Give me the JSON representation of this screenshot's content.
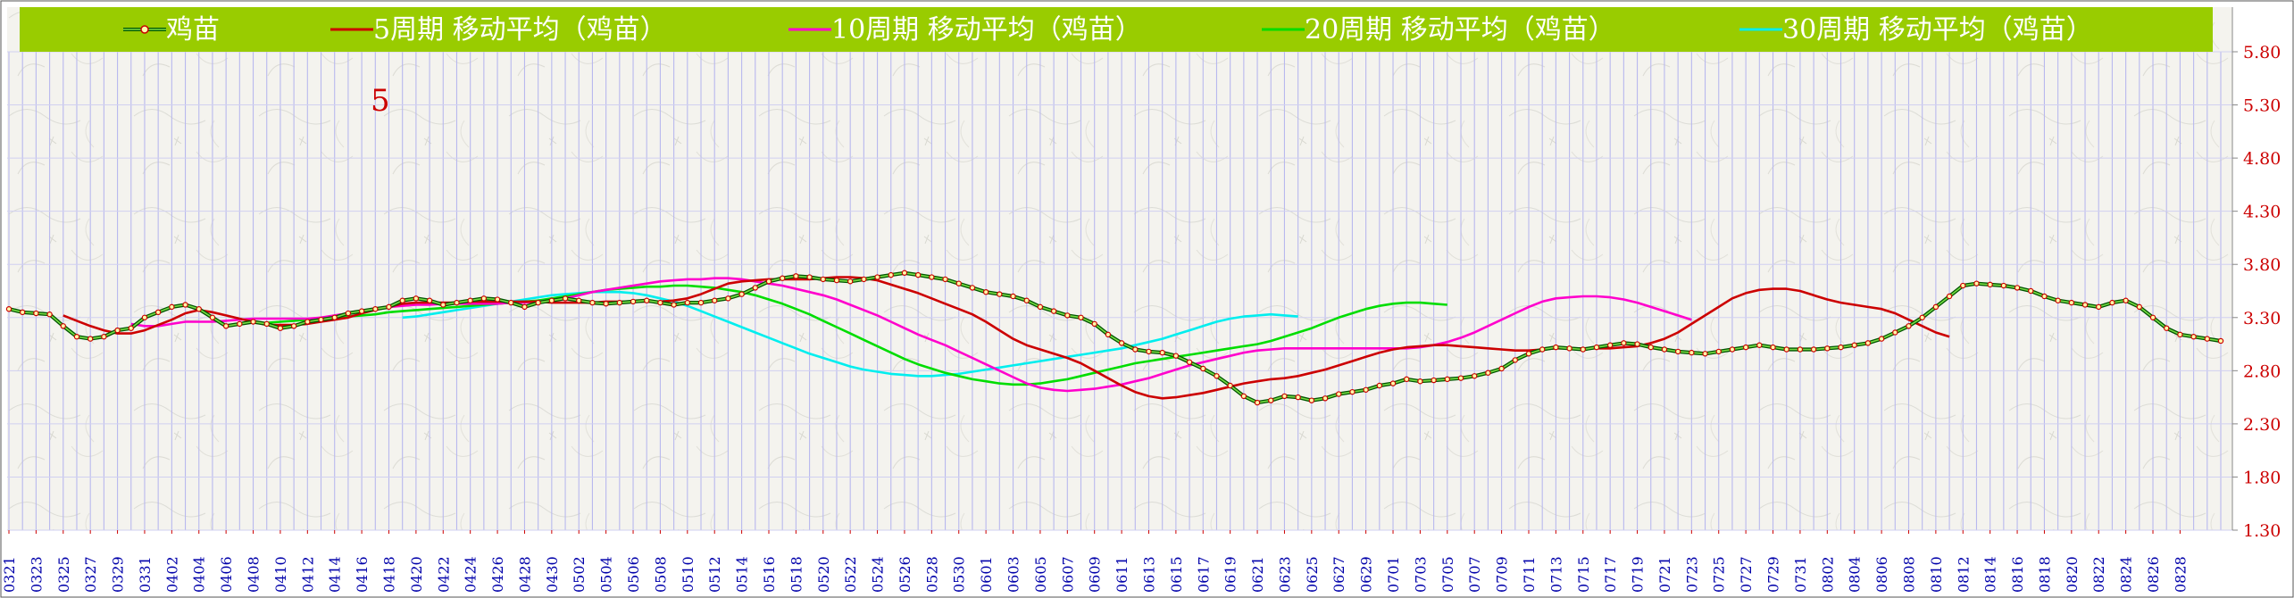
{
  "colors": {
    "background": "#f4f3ee",
    "legend_band": "#99cc00",
    "grid_vertical": "#b8b8ee",
    "grid_horizontal": "#d0d0f0",
    "axis_label_y": "#cc0000",
    "axis_label_x": "#0000aa",
    "annotation": "#cc0000"
  },
  "chart_data": {
    "type": "line",
    "ylim": [
      1.3,
      5.8
    ],
    "y_ticks": [
      "5.80",
      "5.30",
      "4.80",
      "4.30",
      "3.80",
      "3.30",
      "2.80",
      "2.30",
      "1.80",
      "1.30"
    ],
    "annotation": "5",
    "x_ticks": [
      "0321",
      "0323",
      "0325",
      "0327",
      "0329",
      "0331",
      "0402",
      "0404",
      "0406",
      "0408",
      "0410",
      "0412",
      "0414",
      "0416",
      "0418",
      "0420",
      "0422",
      "0424",
      "0426",
      "0428",
      "0430",
      "0502",
      "0504",
      "0506",
      "0508",
      "0510",
      "0512",
      "0514",
      "0516",
      "0518",
      "0520",
      "0522",
      "0524",
      "0526",
      "0528",
      "0530",
      "0601",
      "0603",
      "0605",
      "0607",
      "0609",
      "0611",
      "0613",
      "0615",
      "0617",
      "0619",
      "0621",
      "0623",
      "0625",
      "0627",
      "0629",
      "0701",
      "0703",
      "0705",
      "0707",
      "0709",
      "0711",
      "0713",
      "0715",
      "0717",
      "0719",
      "0721",
      "0723",
      "0725",
      "0727",
      "0729",
      "0731",
      "0802",
      "0804",
      "0806",
      "0808",
      "0810",
      "0812",
      "0814",
      "0816",
      "0818",
      "0820",
      "0822",
      "0824",
      "0826",
      "0828"
    ],
    "series": [
      {
        "name": "鸡苗",
        "color": "#cc0000",
        "marker": true,
        "values": [
          3.38,
          3.35,
          3.34,
          3.33,
          3.22,
          3.12,
          3.1,
          3.12,
          3.18,
          3.2,
          3.3,
          3.35,
          3.4,
          3.42,
          3.38,
          3.3,
          3.22,
          3.24,
          3.26,
          3.24,
          3.2,
          3.22,
          3.26,
          3.28,
          3.3,
          3.34,
          3.36,
          3.38,
          3.4,
          3.46,
          3.48,
          3.46,
          3.42,
          3.44,
          3.46,
          3.48,
          3.47,
          3.44,
          3.4,
          3.44,
          3.46,
          3.48,
          3.46,
          3.44,
          3.43,
          3.44,
          3.45,
          3.46,
          3.44,
          3.42,
          3.44,
          3.44,
          3.46,
          3.48,
          3.52,
          3.58,
          3.64,
          3.67,
          3.69,
          3.68,
          3.66,
          3.65,
          3.64,
          3.66,
          3.68,
          3.7,
          3.72,
          3.7,
          3.68,
          3.66,
          3.62,
          3.58,
          3.54,
          3.52,
          3.5,
          3.46,
          3.4,
          3.36,
          3.32,
          3.3,
          3.24,
          3.14,
          3.06,
          3.0,
          2.98,
          2.97,
          2.94,
          2.88,
          2.82,
          2.75,
          2.66,
          2.56,
          2.5,
          2.52,
          2.56,
          2.55,
          2.52,
          2.54,
          2.58,
          2.6,
          2.62,
          2.66,
          2.68,
          2.72,
          2.7,
          2.71,
          2.72,
          2.73,
          2.75,
          2.78,
          2.82,
          2.9,
          2.96,
          3.0,
          3.02,
          3.01,
          3.0,
          3.02,
          3.04,
          3.06,
          3.05,
          3.02,
          3.0,
          2.98,
          2.97,
          2.96,
          2.98,
          3.0,
          3.02,
          3.04,
          3.02,
          3.0,
          3.0,
          3.0,
          3.01,
          3.02,
          3.04,
          3.06,
          3.1,
          3.16,
          3.22,
          3.3,
          3.4,
          3.5,
          3.6,
          3.62,
          3.61,
          3.6,
          3.58,
          3.55,
          3.5,
          3.46,
          3.44,
          3.42,
          3.4,
          3.44,
          3.46,
          3.4,
          3.3,
          3.2,
          3.14,
          3.12,
          3.1,
          3.08
        ]
      },
      {
        "name": "5周期 移动平均（鸡苗）",
        "color": "#cc0000",
        "marker": false,
        "start": 4,
        "values": [
          3.32,
          3.27,
          3.22,
          3.18,
          3.15,
          3.15,
          3.18,
          3.23,
          3.28,
          3.34,
          3.37,
          3.35,
          3.32,
          3.29,
          3.26,
          3.23,
          3.23,
          3.23,
          3.24,
          3.26,
          3.28,
          3.3,
          3.34,
          3.37,
          3.4,
          3.43,
          3.44,
          3.44,
          3.44,
          3.44,
          3.45,
          3.45,
          3.45,
          3.45,
          3.45,
          3.45,
          3.44,
          3.44,
          3.44,
          3.44,
          3.45,
          3.45,
          3.45,
          3.45,
          3.45,
          3.46,
          3.48,
          3.52,
          3.57,
          3.62,
          3.64,
          3.65,
          3.66,
          3.66,
          3.66,
          3.66,
          3.67,
          3.68,
          3.68,
          3.67,
          3.65,
          3.61,
          3.57,
          3.53,
          3.48,
          3.43,
          3.38,
          3.33,
          3.26,
          3.18,
          3.1,
          3.04,
          3.0,
          2.96,
          2.92,
          2.87,
          2.8,
          2.73,
          2.66,
          2.6,
          2.56,
          2.54,
          2.55,
          2.57,
          2.59,
          2.62,
          2.65,
          2.68,
          2.7,
          2.72,
          2.73,
          2.75,
          2.78,
          2.81,
          2.85,
          2.89,
          2.93,
          2.97,
          3.0,
          3.02,
          3.03,
          3.04,
          3.04,
          3.03,
          3.02,
          3.01,
          3.0,
          2.99,
          2.99,
          3.0,
          3.01,
          3.01,
          3.01,
          3.01,
          3.01,
          3.02,
          3.03,
          3.06,
          3.1,
          3.16,
          3.24,
          3.32,
          3.4,
          3.48,
          3.53,
          3.56,
          3.57,
          3.57,
          3.55,
          3.51,
          3.47,
          3.44,
          3.42,
          3.4,
          3.38,
          3.34,
          3.28,
          3.22,
          3.16,
          3.12
        ]
      },
      {
        "name": "10周期 移动平均（鸡苗）",
        "color": "#ff00cc",
        "marker": false,
        "start": 9,
        "values": [
          3.24,
          3.22,
          3.22,
          3.24,
          3.26,
          3.26,
          3.26,
          3.27,
          3.28,
          3.29,
          3.29,
          3.29,
          3.29,
          3.29,
          3.3,
          3.32,
          3.34,
          3.36,
          3.38,
          3.4,
          3.41,
          3.42,
          3.42,
          3.43,
          3.43,
          3.43,
          3.43,
          3.43,
          3.44,
          3.44,
          3.45,
          3.46,
          3.48,
          3.51,
          3.54,
          3.56,
          3.58,
          3.6,
          3.62,
          3.64,
          3.65,
          3.66,
          3.66,
          3.67,
          3.67,
          3.66,
          3.64,
          3.62,
          3.6,
          3.57,
          3.54,
          3.51,
          3.47,
          3.42,
          3.37,
          3.32,
          3.26,
          3.2,
          3.14,
          3.09,
          3.04,
          2.98,
          2.92,
          2.86,
          2.8,
          2.74,
          2.68,
          2.64,
          2.62,
          2.61,
          2.62,
          2.63,
          2.65,
          2.67,
          2.7,
          2.73,
          2.77,
          2.81,
          2.85,
          2.88,
          2.91,
          2.94,
          2.97,
          2.99,
          3.0,
          3.01,
          3.01,
          3.01,
          3.01,
          3.01,
          3.01,
          3.01,
          3.01,
          3.01,
          3.01,
          3.02,
          3.04,
          3.07,
          3.11,
          3.16,
          3.22,
          3.28,
          3.34,
          3.4,
          3.45,
          3.48,
          3.49,
          3.5,
          3.5,
          3.49,
          3.47,
          3.44,
          3.4,
          3.36,
          3.32,
          3.28
        ]
      },
      {
        "name": "20周期 移动平均（鸡苗）",
        "color": "#00dd00",
        "marker": false,
        "start": 19,
        "values": [
          3.25,
          3.26,
          3.27,
          3.28,
          3.29,
          3.3,
          3.31,
          3.32,
          3.33,
          3.35,
          3.36,
          3.37,
          3.38,
          3.39,
          3.4,
          3.41,
          3.42,
          3.43,
          3.44,
          3.45,
          3.46,
          3.48,
          3.5,
          3.52,
          3.54,
          3.56,
          3.57,
          3.58,
          3.59,
          3.59,
          3.6,
          3.6,
          3.59,
          3.58,
          3.56,
          3.54,
          3.51,
          3.47,
          3.43,
          3.38,
          3.33,
          3.27,
          3.21,
          3.15,
          3.09,
          3.03,
          2.97,
          2.91,
          2.86,
          2.82,
          2.78,
          2.75,
          2.72,
          2.7,
          2.68,
          2.67,
          2.67,
          2.68,
          2.7,
          2.72,
          2.75,
          2.78,
          2.81,
          2.84,
          2.87,
          2.89,
          2.91,
          2.93,
          2.95,
          2.97,
          2.99,
          3.01,
          3.03,
          3.05,
          3.08,
          3.12,
          3.16,
          3.2,
          3.25,
          3.3,
          3.34,
          3.38,
          3.41,
          3.43,
          3.44,
          3.44,
          3.43,
          3.42
        ]
      },
      {
        "name": "30周期 移动平均（鸡苗）",
        "color": "#00eeee",
        "marker": false,
        "start": 29,
        "values": [
          3.3,
          3.31,
          3.33,
          3.35,
          3.37,
          3.39,
          3.41,
          3.43,
          3.45,
          3.47,
          3.49,
          3.51,
          3.52,
          3.53,
          3.54,
          3.54,
          3.54,
          3.53,
          3.51,
          3.48,
          3.45,
          3.41,
          3.36,
          3.31,
          3.26,
          3.21,
          3.16,
          3.11,
          3.06,
          3.01,
          2.96,
          2.92,
          2.88,
          2.84,
          2.81,
          2.79,
          2.77,
          2.76,
          2.75,
          2.75,
          2.76,
          2.77,
          2.79,
          2.81,
          2.83,
          2.85,
          2.87,
          2.89,
          2.91,
          2.93,
          2.95,
          2.97,
          2.99,
          3.01,
          3.04,
          3.07,
          3.1,
          3.14,
          3.18,
          3.22,
          3.26,
          3.29,
          3.31,
          3.32,
          3.33,
          3.32,
          3.31
        ]
      }
    ]
  }
}
